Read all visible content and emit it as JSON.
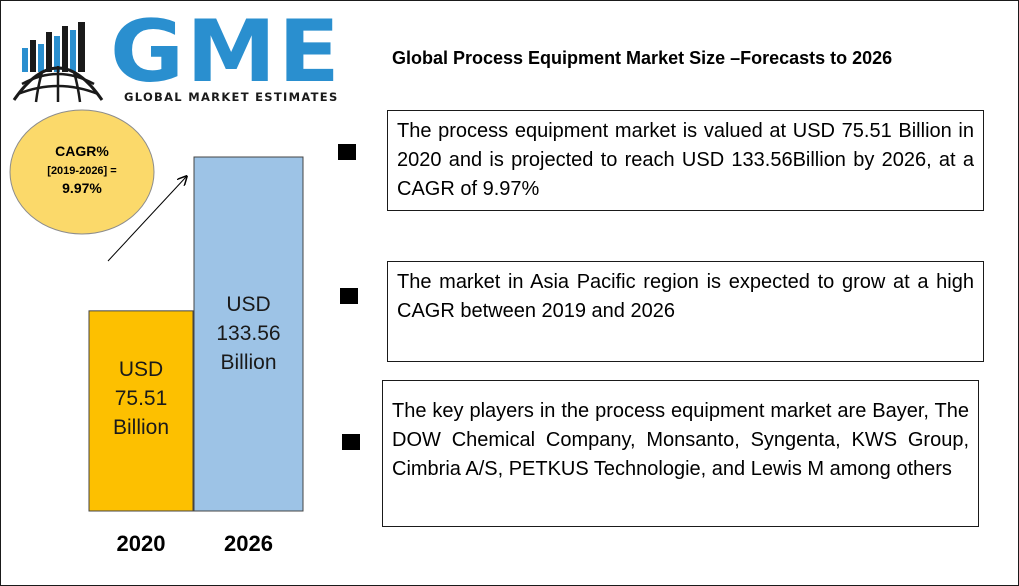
{
  "logo": {
    "letters": "GME",
    "tagline": "GLOBAL MARKET ESTIMATES",
    "brand_color": "#2a8fcf"
  },
  "title": "Global Process Equipment Market Size –Forecasts to 2026",
  "cagr": {
    "line1": "CAGR%",
    "line2": "[2019-2026] =",
    "line3": "9.97%",
    "fill_color": "#fbd96a"
  },
  "chart_data": {
    "type": "bar",
    "categories": [
      "2020",
      "2026"
    ],
    "values": [
      75.51,
      133.56
    ],
    "ylim": [
      0,
      133.56
    ],
    "unit": "USD Billion",
    "colors": [
      "#fdc000",
      "#9dc3e6"
    ],
    "data_labels": [
      [
        "USD",
        "75.51",
        "Billion"
      ],
      [
        "USD",
        "133.56",
        "Billion"
      ]
    ]
  },
  "bullets": [
    "The process equipment market is valued at USD 75.51 Billion in 2020 and is projected to reach USD 133.56Billion by 2026, at a CAGR of 9.97%",
    "The market in Asia Pacific region is expected to grow at a high CAGR between 2019 and 2026",
    "The key players in the process equipment market are Bayer, The DOW Chemical Company, Monsanto, Syngenta, KWS Group, Cimbria A/S, PETKUS Technologie, and Lewis M among others"
  ]
}
